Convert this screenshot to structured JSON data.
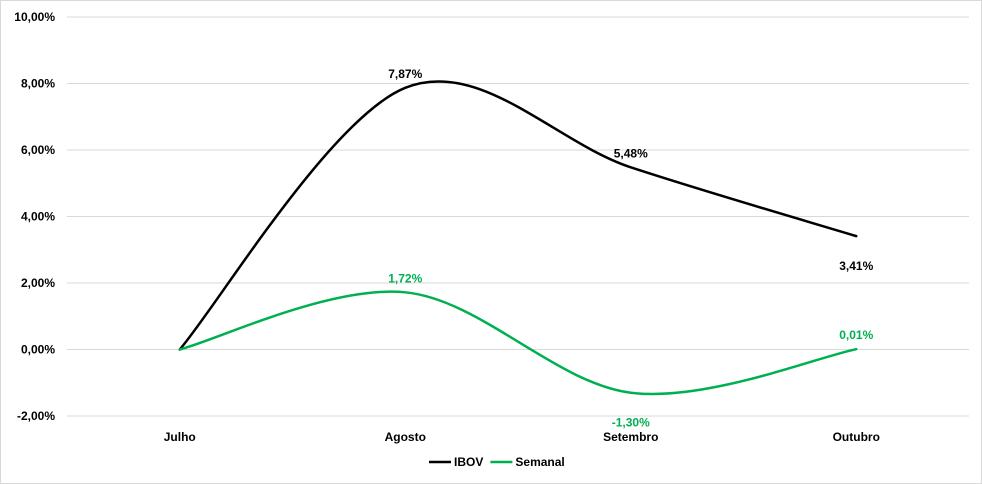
{
  "chart_data": {
    "type": "line",
    "title": "",
    "xlabel": "",
    "ylabel": "",
    "categories": [
      "Julho",
      "Agosto",
      "Setembro",
      "Outubro"
    ],
    "ylim": [
      -2,
      10
    ],
    "yticks": [
      -2,
      0,
      2,
      4,
      6,
      8,
      10
    ],
    "ytick_labels": [
      "-2,00%",
      "0,00%",
      "2,00%",
      "4,00%",
      "6,00%",
      "8,00%",
      "10,00%"
    ],
    "grid": "horizontal",
    "smooth": true,
    "legend_position": "bottom-center",
    "series": [
      {
        "name": "IBOV",
        "color": "#000000",
        "values": [
          0,
          7.87,
          5.48,
          3.41
        ],
        "labels": [
          "",
          "7,87%",
          "5,48%",
          "3,41%"
        ]
      },
      {
        "name": "Semanal",
        "color": "#00b050",
        "values": [
          0,
          1.72,
          -1.3,
          0.01
        ],
        "labels": [
          "",
          "1,72%",
          "-1,30%",
          "0,01%"
        ]
      }
    ]
  }
}
